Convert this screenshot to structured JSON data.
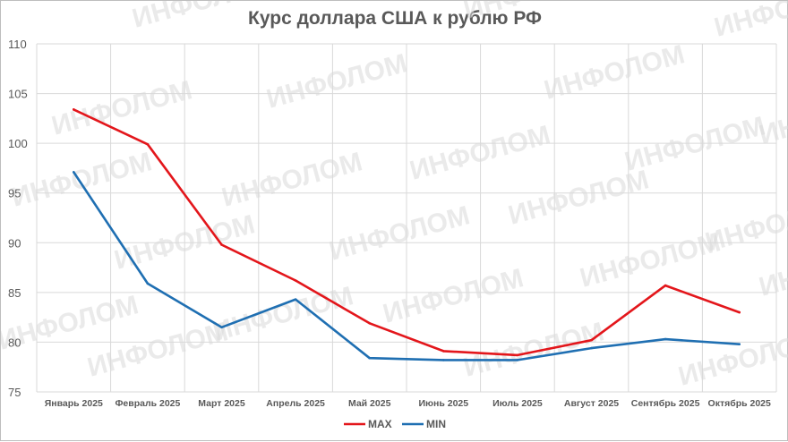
{
  "chart_data": {
    "type": "line",
    "title": "Курс доллара США к рублю РФ",
    "categories": [
      "Январь 2025",
      "Февраль 2025",
      "Март 2025",
      "Апрель 2025",
      "Май 2025",
      "Июнь 2025",
      "Июль 2025",
      "Август 2025",
      "Сентябрь 2025",
      "Октябрь 2025"
    ],
    "series": [
      {
        "name": "MAX",
        "color": "#e3161b",
        "values": [
          103.4,
          99.9,
          89.8,
          86.2,
          81.9,
          79.1,
          78.7,
          80.2,
          85.7,
          83.0
        ]
      },
      {
        "name": "MIN",
        "color": "#1f6fb2",
        "values": [
          97.1,
          85.9,
          81.5,
          84.3,
          78.4,
          78.2,
          78.2,
          79.4,
          80.3,
          79.8
        ]
      }
    ],
    "ylim": [
      75,
      110
    ],
    "yticks": [
      75,
      80,
      85,
      90,
      95,
      100,
      105,
      110
    ],
    "grid": true,
    "legend": "bottom",
    "watermark": "ИНФОЛОМ"
  }
}
